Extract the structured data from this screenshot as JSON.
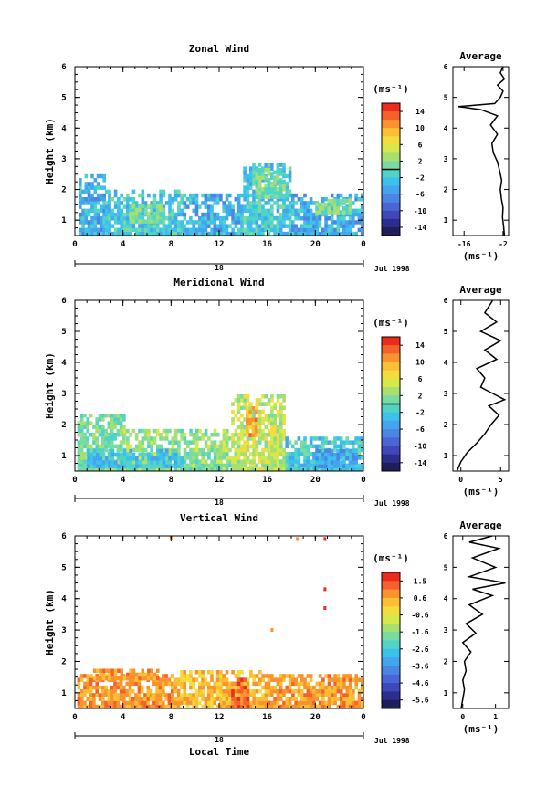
{
  "chart_data": [
    {
      "type": "heatmap",
      "title": "Zonal Wind",
      "xlabel": "",
      "ylabel": "Height (km)",
      "x_ticks": [
        "0",
        "4",
        "8",
        "12",
        "16",
        "20",
        "0"
      ],
      "y_ticks": [
        "1",
        "2",
        "3",
        "4",
        "5",
        "6"
      ],
      "xlim": [
        0,
        24
      ],
      "ylim": [
        0.5,
        6
      ],
      "date_axis": {
        "day": "18",
        "month_year": "Jul 1998"
      },
      "colorbar": {
        "unit": "(ms⁻¹)",
        "labels": [
          "14",
          "10",
          "6",
          "2",
          "-2",
          "-6",
          "-10",
          "-14"
        ],
        "colors": [
          "#ee2a1f",
          "#f5612b",
          "#f8932e",
          "#fbbf33",
          "#f4dc3c",
          "#d6e84a",
          "#a8e070",
          "#78dba0",
          "#50d4c8",
          "#3cc0ec",
          "#44a4ee",
          "#4a86e4",
          "#4a66d6",
          "#3e48b8",
          "#2c2e8e",
          "#1e1e5a"
        ],
        "zero_line": true
      },
      "regions": [
        {
          "x0": 0.3,
          "x1": 2.5,
          "y0": 0.5,
          "y1": 2.4,
          "level": -4
        },
        {
          "x0": 2.5,
          "x1": 9,
          "y0": 0.5,
          "y1": 1.9,
          "level": -2
        },
        {
          "x0": 9,
          "x1": 14,
          "y0": 0.5,
          "y1": 1.8,
          "level": -4
        },
        {
          "x0": 14,
          "x1": 18,
          "y0": 0.5,
          "y1": 2.8,
          "level": -2
        },
        {
          "x0": 18,
          "x1": 23.8,
          "y0": 0.5,
          "y1": 1.8,
          "level": -4
        },
        {
          "x0": 4.5,
          "x1": 7.5,
          "y0": 0.9,
          "y1": 1.5,
          "level": 1
        },
        {
          "x0": 15,
          "x1": 17.5,
          "y0": 1.7,
          "y1": 2.6,
          "level": 1
        },
        {
          "x0": 20,
          "x1": 23,
          "y0": 1.2,
          "y1": 1.6,
          "level": 1
        }
      ],
      "average_profile": {
        "title": "Average",
        "xlabel": "(ms⁻¹)",
        "x_ticks": [
          "-16",
          "-2"
        ],
        "xlim": [
          -20,
          0
        ],
        "y": [
          0.5,
          0.8,
          1.1,
          1.4,
          1.7,
          2.0,
          2.3,
          2.6,
          2.9,
          3.2,
          3.5,
          3.8,
          4.1,
          4.4,
          4.6,
          4.7,
          4.8,
          5.0,
          5.2,
          5.4,
          5.6,
          5.8,
          6.0
        ],
        "x": [
          -1.5,
          -1.8,
          -2.2,
          -2.0,
          -2.6,
          -3.0,
          -2.5,
          -3.2,
          -4.0,
          -5.5,
          -6.0,
          -4.0,
          -6.5,
          -4.0,
          -10.0,
          -18.0,
          -5.0,
          -3.0,
          -2.0,
          -4.0,
          -1.5,
          -3.0,
          -2.0
        ]
      }
    },
    {
      "type": "heatmap",
      "title": "Meridional Wind",
      "xlabel": "",
      "ylabel": "Height (km)",
      "x_ticks": [
        "0",
        "4",
        "8",
        "12",
        "16",
        "20",
        "0"
      ],
      "y_ticks": [
        "1",
        "2",
        "3",
        "4",
        "5",
        "6"
      ],
      "xlim": [
        0,
        24
      ],
      "ylim": [
        0.5,
        6
      ],
      "date_axis": {
        "day": "18",
        "month_year": "Jul 1998"
      },
      "colorbar": {
        "unit": "(ms⁻¹)",
        "labels": [
          "14",
          "10",
          "6",
          "2",
          "-2",
          "-6",
          "-10",
          "-14"
        ],
        "colors": [
          "#ee2a1f",
          "#f5612b",
          "#f8932e",
          "#fbbf33",
          "#f4dc3c",
          "#d6e84a",
          "#a8e070",
          "#78dba0",
          "#50d4c8",
          "#3cc0ec",
          "#44a4ee",
          "#4a86e4",
          "#4a66d6",
          "#3e48b8",
          "#2c2e8e",
          "#1e1e5a"
        ],
        "zero_line": true
      },
      "regions": [
        {
          "x0": 0.2,
          "x1": 4,
          "y0": 0.5,
          "y1": 2.3,
          "level": 1
        },
        {
          "x0": 4,
          "x1": 13,
          "y0": 0.5,
          "y1": 1.8,
          "level": 2
        },
        {
          "x0": 13,
          "x1": 17.5,
          "y0": 0.5,
          "y1": 2.9,
          "level": 4
        },
        {
          "x0": 17.5,
          "x1": 23.8,
          "y0": 0.5,
          "y1": 1.5,
          "level": -2
        },
        {
          "x0": 14.2,
          "x1": 15.2,
          "y0": 1.6,
          "y1": 2.7,
          "level": 10
        },
        {
          "x0": 1,
          "x1": 9,
          "y0": 0.6,
          "y1": 1.1,
          "level": -3
        },
        {
          "x0": 20,
          "x1": 23.5,
          "y0": 0.6,
          "y1": 1.2,
          "level": -5
        }
      ],
      "average_profile": {
        "title": "Average",
        "xlabel": "(ms⁻¹)",
        "x_ticks": [
          "0",
          "5"
        ],
        "xlim": [
          -1,
          6
        ],
        "y": [
          0.5,
          0.8,
          1.1,
          1.4,
          1.7,
          2.0,
          2.3,
          2.6,
          2.8,
          3.0,
          3.2,
          3.5,
          3.8,
          4.1,
          4.4,
          4.7,
          5.0,
          5.3,
          5.6,
          6.0
        ],
        "x": [
          -0.5,
          0.0,
          0.8,
          2.0,
          3.0,
          3.8,
          4.8,
          3.5,
          5.5,
          4.0,
          2.5,
          3.0,
          2.0,
          4.5,
          3.0,
          5.0,
          2.5,
          4.5,
          3.0,
          4.0
        ]
      }
    },
    {
      "type": "heatmap",
      "title": "Vertical Wind",
      "xlabel": "Local Time",
      "ylabel": "Height (km)",
      "x_ticks": [
        "0",
        "4",
        "8",
        "12",
        "16",
        "20",
        "0"
      ],
      "y_ticks": [
        "1",
        "2",
        "3",
        "4",
        "5",
        "6"
      ],
      "xlim": [
        0,
        24
      ],
      "ylim": [
        0.5,
        6
      ],
      "date_axis": {
        "day": "18",
        "month_year": "Jul 1998"
      },
      "colorbar": {
        "unit": "(ms⁻¹)",
        "labels": [
          "1.5",
          "0.6",
          "-0.6",
          "-1.6",
          "-2.6",
          "-3.6",
          "-4.6",
          "-5.6"
        ],
        "colors": [
          "#ee2a1f",
          "#f5612b",
          "#f8932e",
          "#fbbf33",
          "#f4dc3c",
          "#d6e84a",
          "#a8e070",
          "#78dba0",
          "#50d4c8",
          "#3cc0ec",
          "#44a4ee",
          "#4a86e4",
          "#4a66d6",
          "#3e48b8",
          "#2c2e8e",
          "#1e1e5a"
        ],
        "zero_line": false
      },
      "regions": [
        {
          "x0": 0.2,
          "x1": 8,
          "y0": 0.5,
          "y1": 1.5,
          "level": 0.3
        },
        {
          "x0": 8,
          "x1": 16,
          "y0": 0.5,
          "y1": 1.7,
          "level": 0.0
        },
        {
          "x0": 16,
          "x1": 23.8,
          "y0": 0.5,
          "y1": 1.6,
          "level": 0.3
        },
        {
          "x0": 13,
          "x1": 14.5,
          "y0": 0.5,
          "y1": 1.4,
          "level": 0.9
        },
        {
          "x0": 1.5,
          "x1": 7,
          "y0": 1.4,
          "y1": 1.7,
          "level": 0.3
        }
      ],
      "spots": [
        {
          "x": 20.8,
          "y": 5.9,
          "level": 1.5
        },
        {
          "x": 20.8,
          "y": 4.3,
          "level": 1.5
        },
        {
          "x": 20.8,
          "y": 3.7,
          "level": 1.5
        },
        {
          "x": 8,
          "y": 5.95,
          "level": 0.3
        },
        {
          "x": 18.5,
          "y": 5.9,
          "level": 0.3
        },
        {
          "x": 16.4,
          "y": 3.0,
          "level": 0.3
        }
      ],
      "average_profile": {
        "title": "Average",
        "xlabel": "(ms⁻¹)",
        "x_ticks": [
          "0",
          "1"
        ],
        "xlim": [
          -0.3,
          1.4
        ],
        "y": [
          0.5,
          0.8,
          1.1,
          1.4,
          1.7,
          2.0,
          2.3,
          2.6,
          2.9,
          3.2,
          3.5,
          3.8,
          4.1,
          4.3,
          4.5,
          4.7,
          5.0,
          5.3,
          5.6,
          5.8,
          6.0
        ],
        "x": [
          -0.05,
          0.0,
          0.05,
          0.0,
          0.1,
          0.05,
          0.25,
          0.0,
          0.4,
          0.1,
          0.6,
          0.2,
          0.9,
          0.3,
          1.3,
          0.2,
          1.0,
          0.3,
          1.1,
          0.2,
          0.9
        ]
      }
    }
  ]
}
